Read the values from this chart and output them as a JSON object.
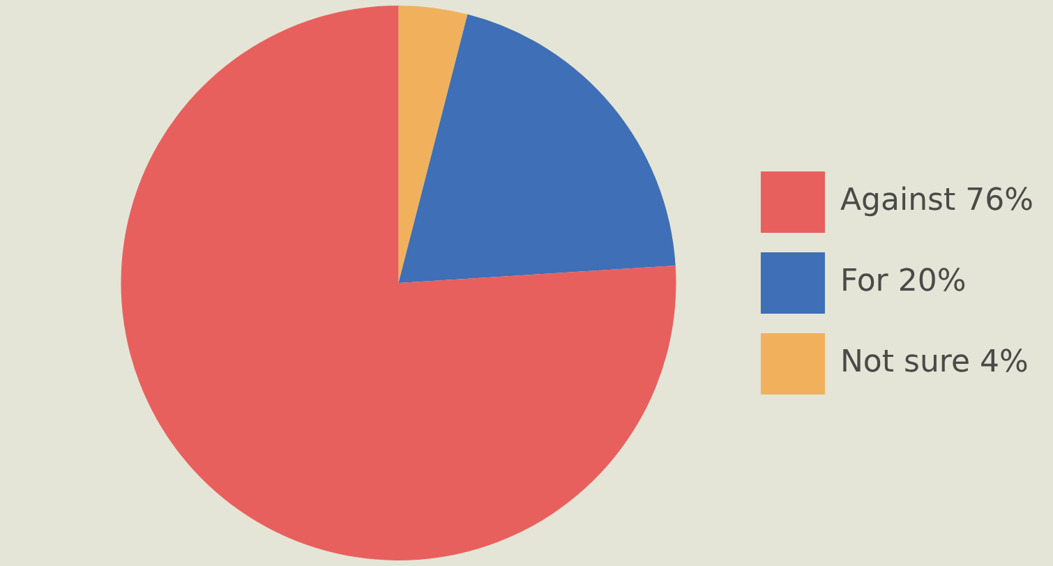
{
  "chart_data": {
    "type": "pie",
    "categories": [
      "Against",
      "For",
      "Not sure"
    ],
    "values": [
      76,
      20,
      4
    ],
    "value_labels": [
      "76%",
      "20%",
      "4%"
    ],
    "colors": [
      "#e8605e",
      "#3f6fb6",
      "#f1b15c"
    ],
    "legend": "right"
  }
}
